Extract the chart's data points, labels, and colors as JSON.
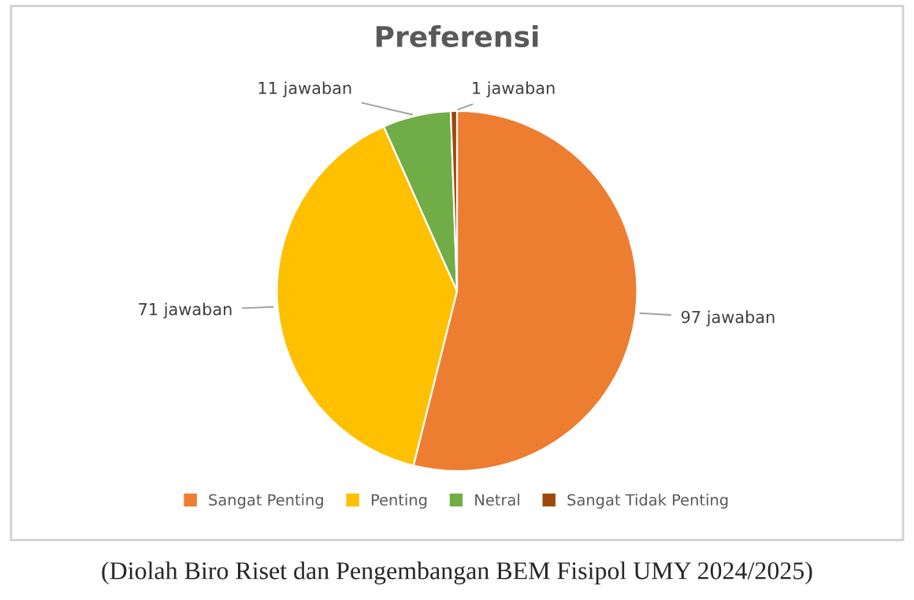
{
  "chart_data": {
    "type": "pie",
    "title": "Preferensi",
    "categories": [
      "Sangat Penting",
      "Penting",
      "Netral",
      "Sangat Tidak Penting"
    ],
    "values": [
      97,
      71,
      11,
      1
    ],
    "colors": [
      "#ed7d31",
      "#ffc000",
      "#70ad47",
      "#9e480e"
    ],
    "value_labels": [
      "97 jawaban",
      "71 jawaban",
      "11 jawaban",
      "1 jawaban"
    ],
    "legend": "bottom",
    "annotations": [
      "(Diolah Biro Riset dan Pengembangan BEM Fisipol UMY 2024/2025)"
    ]
  }
}
